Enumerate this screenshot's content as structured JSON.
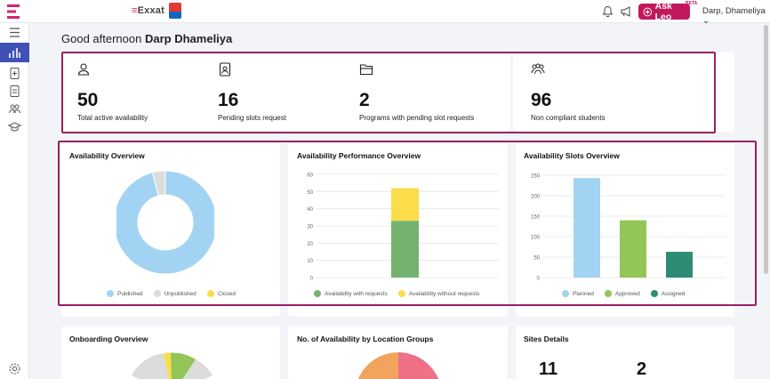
{
  "header": {
    "brand": "Exxat",
    "ask_leo": "Ask Leo",
    "beta": "BETA",
    "user": "Darp, Dhameliya"
  },
  "greeting": {
    "prefix": "Good afternoon",
    "name": "Darp Dhameliya"
  },
  "stats": [
    {
      "value": "50",
      "label": "Total active availability",
      "icon": "person-icon"
    },
    {
      "value": "16",
      "label": "Pending slots request",
      "icon": "document-person-icon"
    },
    {
      "value": "2",
      "label": "Programs with pending slot requests",
      "icon": "folder-icon"
    },
    {
      "value": "96",
      "label": "Non compliant students",
      "icon": "group-icon"
    }
  ],
  "cards": {
    "availability_overview": {
      "title": "Availability Overview"
    },
    "performance_overview": {
      "title": "Availability Performance Overview"
    },
    "slots_overview": {
      "title": "Availability Slots Overview"
    },
    "onboarding_overview": {
      "title": "Onboarding Overview"
    },
    "location_groups": {
      "title": "No. of Availability by Location Groups"
    },
    "sites_details": {
      "title": "Sites Details",
      "values": [
        "11",
        "2"
      ]
    }
  },
  "chart_data": [
    {
      "type": "pie",
      "title": "Availability Overview",
      "labels": [
        "Published",
        "Unpublished",
        "Closed"
      ],
      "values": [
        96,
        4,
        0
      ],
      "colors": [
        "#a3d3f2",
        "#dcdcdc",
        "#fbdd4a"
      ],
      "legend": "bottom"
    },
    {
      "type": "bar",
      "title": "Availability Performance Overview",
      "categories": [
        ""
      ],
      "series": [
        {
          "name": "Availability with requests",
          "values": [
            33
          ],
          "color": "#74b36f"
        },
        {
          "name": "Availability without requests",
          "values": [
            19
          ],
          "color": "#fbdd4a"
        }
      ],
      "ylim": [
        0,
        60
      ],
      "yticks": [
        0,
        10,
        20,
        30,
        40,
        50,
        60
      ],
      "stacked": true,
      "grid": true,
      "legend": "bottom"
    },
    {
      "type": "bar",
      "title": "Availability Slots Overview",
      "categories": [
        "Planned",
        "Approved",
        "Assigned"
      ],
      "values": [
        243,
        140,
        63
      ],
      "colors": [
        "#a3d3f2",
        "#93c557",
        "#2e8b74"
      ],
      "ylim": [
        0,
        250
      ],
      "yticks": [
        0,
        50,
        100,
        150,
        200,
        250
      ],
      "grid": true,
      "legend": "bottom"
    }
  ]
}
